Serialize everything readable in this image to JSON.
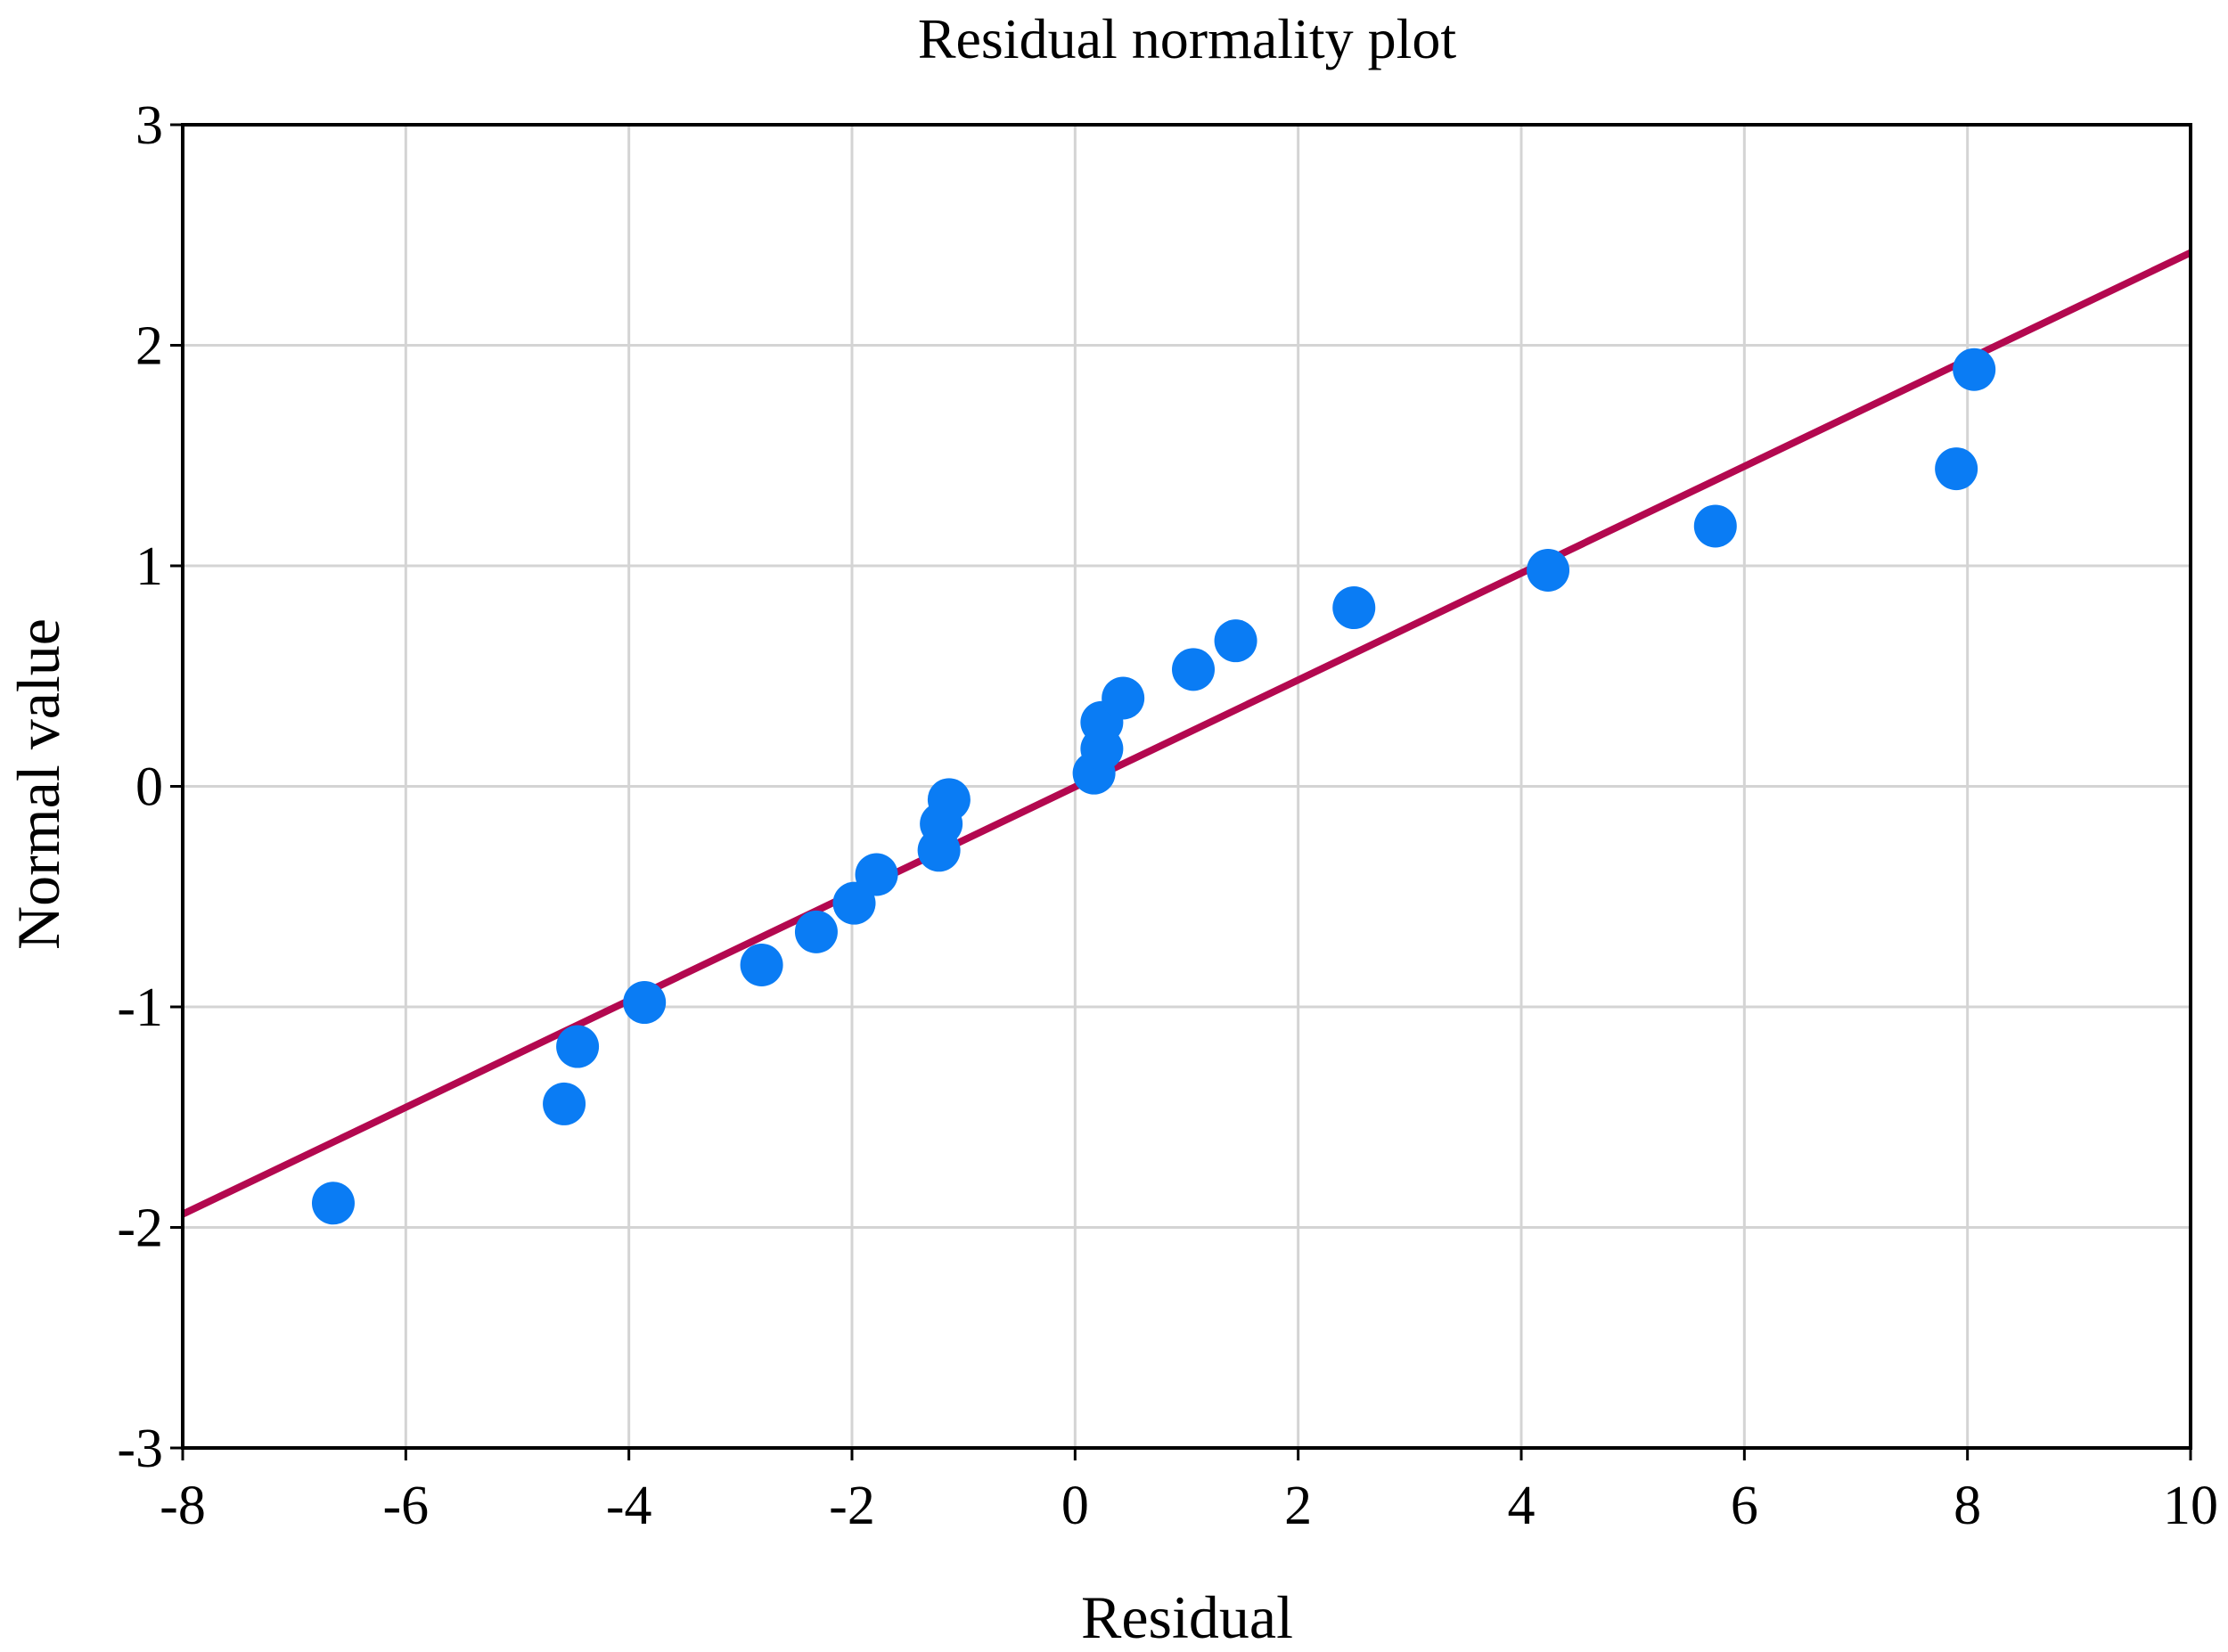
{
  "chart_data": {
    "type": "scatter",
    "title": "Residual normality plot",
    "xlabel": "Residual",
    "ylabel": "Normal value",
    "xlim": [
      -8,
      10
    ],
    "ylim": [
      -3,
      3
    ],
    "xticks": [
      -8,
      -6,
      -4,
      -2,
      0,
      2,
      4,
      6,
      8,
      10
    ],
    "yticks": [
      -3,
      -2,
      -1,
      0,
      1,
      2,
      3
    ],
    "xtick_labels": [
      "-8",
      "-6",
      "-4",
      "-2",
      "0",
      "2",
      "4",
      "6",
      "8",
      "10"
    ],
    "ytick_labels": [
      "-3",
      "-2",
      "-1",
      "0",
      "1",
      "2",
      "3"
    ],
    "grid": true,
    "legend": "none",
    "colors": {
      "points": "#0a7cf4",
      "reference_line": "#b3084f",
      "grid": "#d4d4d4",
      "axes": "#000000"
    },
    "points": [
      {
        "x": -6.65,
        "y": -1.89
      },
      {
        "x": -4.58,
        "y": -1.44
      },
      {
        "x": -4.46,
        "y": -1.18
      },
      {
        "x": -3.86,
        "y": -0.98
      },
      {
        "x": -2.81,
        "y": -0.81
      },
      {
        "x": -2.32,
        "y": -0.66
      },
      {
        "x": -1.98,
        "y": -0.53
      },
      {
        "x": -1.78,
        "y": -0.4
      },
      {
        "x": -1.22,
        "y": -0.29
      },
      {
        "x": -1.2,
        "y": -0.17
      },
      {
        "x": -1.13,
        "y": -0.06
      },
      {
        "x": 0.17,
        "y": 0.06
      },
      {
        "x": 0.24,
        "y": 0.17
      },
      {
        "x": 0.24,
        "y": 0.29
      },
      {
        "x": 0.43,
        "y": 0.4
      },
      {
        "x": 1.06,
        "y": 0.53
      },
      {
        "x": 1.44,
        "y": 0.66
      },
      {
        "x": 2.5,
        "y": 0.81
      },
      {
        "x": 4.24,
        "y": 0.98
      },
      {
        "x": 5.74,
        "y": 1.18
      },
      {
        "x": 7.9,
        "y": 1.44
      },
      {
        "x": 8.06,
        "y": 1.89
      }
    ],
    "reference_line": {
      "x": [
        -8,
        10
      ],
      "y": [
        -1.94,
        2.42
      ]
    }
  }
}
